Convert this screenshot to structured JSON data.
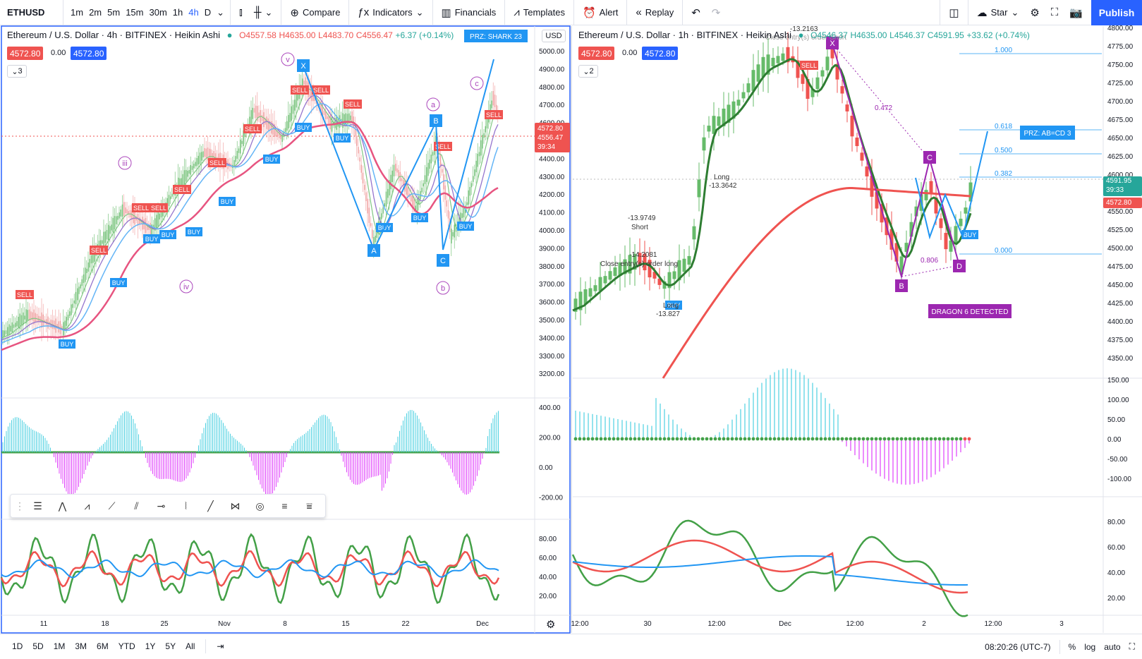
{
  "topbar": {
    "symbol": "ETHUSD",
    "intervals": [
      "1m",
      "2m",
      "5m",
      "15m",
      "30m",
      "1h",
      "4h",
      "D"
    ],
    "active_interval": "4h",
    "compare": "Compare",
    "indicators": "Indicators",
    "financials": "Financials",
    "templates": "Templates",
    "alert": "Alert",
    "replay": "Replay",
    "star": "Star",
    "publish": "Publish"
  },
  "left": {
    "title": "Ethereum / U.S. Dollar · 4h · BITFINEX · Heikin Ashi",
    "ohlc_o": "O4557.58",
    "ohlc_h": "H4635.00",
    "ohlc_l": "L4483.70",
    "ohlc_c": "C4556.47",
    "ohlc_chg": "+6.37 (+0.14%)",
    "bid": "4572.80",
    "spread": "0.00",
    "ask": "4572.80",
    "collapse": "3",
    "currency": "USD",
    "price_axis": [
      "5000.00",
      "4900.00",
      "4800.00",
      "4700.00",
      "4600.00",
      "4500.00",
      "4400.00",
      "4300.00",
      "4200.00",
      "4100.00",
      "4000.00",
      "3900.00",
      "3800.00",
      "3700.00",
      "3600.00",
      "3500.00",
      "3400.00",
      "3300.00",
      "3200.00"
    ],
    "price_tag": "4572.80",
    "price_tag2": "4556.47",
    "price_tag3": "39:34",
    "osc_axis": [
      "400.00",
      "200.00",
      "0.00",
      "-200.00"
    ],
    "rsi_axis": [
      "80.00",
      "60.00",
      "40.00",
      "20.00"
    ],
    "time_axis": [
      "11",
      "18",
      "25",
      "Nov",
      "8",
      "15",
      "22",
      "Dec"
    ],
    "prz_label": "PRZ: SHARK 23",
    "wave_labels": [
      "v",
      "iii",
      "iv",
      "a",
      "b",
      "c"
    ],
    "pattern_points": [
      "X",
      "A",
      "B",
      "C"
    ]
  },
  "right": {
    "title": "Ethereum / U.S. Dollar · 1h · BITFINEX · Heikin Ashi",
    "ohlc_o": "O4546.37",
    "ohlc_h": "H4635.00",
    "ohlc_l": "L4546.37",
    "ohlc_c": "C4591.95",
    "ohlc_chg": "+33.62 (+0.74%)",
    "bid": "4572.80",
    "spread": "0.00",
    "ask": "4572.80",
    "collapse": "2",
    "price_axis": [
      "4800.00",
      "4775.00",
      "4750.00",
      "4725.00",
      "4700.00",
      "4675.00",
      "4650.00",
      "4625.00",
      "4600.00",
      "4575.00",
      "4550.00",
      "4525.00",
      "4500.00",
      "4475.00",
      "4450.00",
      "4425.00",
      "4400.00",
      "4375.00",
      "4350.00"
    ],
    "price_tag": "4591.95",
    "price_tag_time": "39:33",
    "price_tag2": "4572.80",
    "osc_axis": [
      "150.00",
      "100.00",
      "50.00",
      "0.00",
      "-50.00",
      "-100.00"
    ],
    "rsi_axis": [
      "80.00",
      "60.00",
      "40.00",
      "20.00"
    ],
    "time_axis": [
      "12:00",
      "30",
      "12:00",
      "Dec",
      "12:00",
      "2",
      "12:00",
      "3"
    ],
    "fib_levels": [
      "1.000",
      "0.618",
      "0.500",
      "0.382",
      "0.000"
    ],
    "fib_ratios": [
      "0.472",
      "0.806"
    ],
    "prz_label": "PRZ: AB=CD 3",
    "dragon_label": "DRAGON 6 DETECTED",
    "pattern_points": [
      "X",
      "B",
      "C",
      "D"
    ],
    "annotations": [
      "-13.9749",
      "Short",
      "-14.2081",
      "Close entry(s) order long",
      "Long",
      "-13.827",
      "Long",
      "-13.3642",
      "-13.2163",
      "Close entry(s) order Short"
    ]
  },
  "bottombar": {
    "ranges": [
      "1D",
      "5D",
      "1M",
      "3M",
      "6M",
      "YTD",
      "1Y",
      "5Y",
      "All"
    ],
    "clock": "08:20:26 (UTC-7)",
    "pct": "%",
    "log": "log",
    "auto": "auto"
  },
  "colors": {
    "up": "#26a69a",
    "down": "#ef5350",
    "accent": "#2962ff",
    "pattern": "#9c27b0",
    "buy": "#2196f3",
    "sell": "#ef5350"
  }
}
